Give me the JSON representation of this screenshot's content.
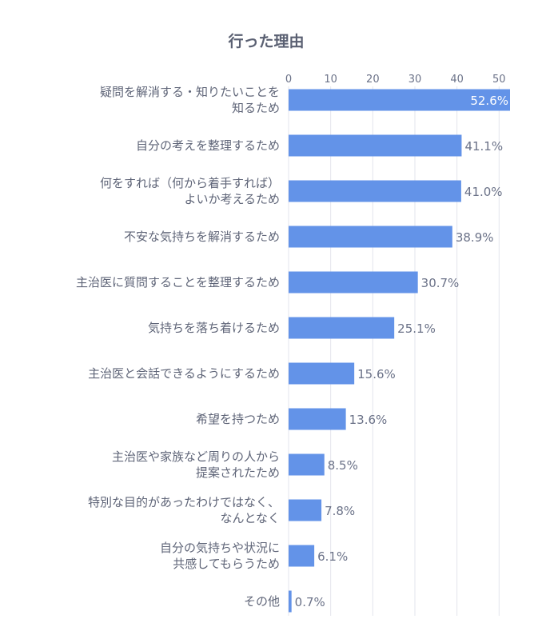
{
  "chart_data": {
    "type": "bar",
    "orientation": "horizontal",
    "title": "行った理由",
    "categories": [
      [
        "疑問を解消する・知りたいことを",
        "知るため"
      ],
      [
        "自分の考えを整理するため"
      ],
      [
        "何をすれば（何から着手すれば）",
        "よいか考えるため"
      ],
      [
        "不安な気持ちを解消するため"
      ],
      [
        "主治医に質問することを整理するため"
      ],
      [
        "気持ちを落ち着けるため"
      ],
      [
        "主治医と会話できるようにするため"
      ],
      [
        "希望を持つため"
      ],
      [
        "主治医や家族など周りの人から",
        "提案されたため"
      ],
      [
        "特別な目的があったわけではなく、",
        "なんとなく"
      ],
      [
        "自分の気持ちや状況に",
        "共感してもらうため"
      ],
      [
        "その他"
      ]
    ],
    "values": [
      52.6,
      41.1,
      41.0,
      38.9,
      30.7,
      25.1,
      15.6,
      13.6,
      8.5,
      7.8,
      6.1,
      0.7
    ],
    "value_labels": [
      "52.6%",
      "41.1%",
      "41.0%",
      "38.9%",
      "30.7%",
      "25.1%",
      "15.6%",
      "13.6%",
      "8.5%",
      "7.8%",
      "6.1%",
      "0.7%"
    ],
    "xticks": [
      0,
      10,
      20,
      30,
      40,
      50
    ],
    "xlim": [
      0,
      52.6
    ],
    "xaxis_position": "top",
    "grid": true,
    "bar_color": "#6393e8"
  }
}
